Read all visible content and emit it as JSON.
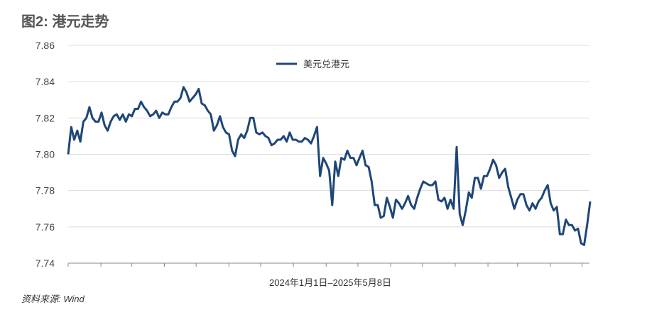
{
  "title": "图2: 港元走势",
  "source": "资料来源: Wind",
  "chart_data": {
    "type": "line",
    "title": "图2: 港元走势",
    "xlabel": "2024年1月1日–2025年5月8日",
    "ylabel": "",
    "x_range": [
      "2024-01-01",
      "2025-05-08"
    ],
    "ylim": [
      7.74,
      7.86
    ],
    "yticks": [
      "7.74",
      "7.76",
      "7.78",
      "7.80",
      "7.82",
      "7.84",
      "7.86"
    ],
    "grid": true,
    "legend": "top-center",
    "color": "#1f4678",
    "series": [
      {
        "name": "美元兑港元",
        "values": [
          7.8,
          7.815,
          7.808,
          7.813,
          7.807,
          7.818,
          7.82,
          7.826,
          7.82,
          7.818,
          7.818,
          7.823,
          7.816,
          7.813,
          7.818,
          7.821,
          7.822,
          7.819,
          7.822,
          7.818,
          7.822,
          7.821,
          7.825,
          7.825,
          7.829,
          7.826,
          7.824,
          7.821,
          7.822,
          7.824,
          7.82,
          7.823,
          7.822,
          7.822,
          7.826,
          7.829,
          7.829,
          7.831,
          7.837,
          7.834,
          7.829,
          7.831,
          7.833,
          7.836,
          7.828,
          7.827,
          7.824,
          7.822,
          7.813,
          7.816,
          7.821,
          7.815,
          7.812,
          7.811,
          7.802,
          7.799,
          7.808,
          7.811,
          7.809,
          7.813,
          7.82,
          7.82,
          7.812,
          7.811,
          7.812,
          7.81,
          7.809,
          7.805,
          7.806,
          7.808,
          7.808,
          7.81,
          7.807,
          7.812,
          7.808,
          7.808,
          7.807,
          7.807,
          7.809,
          7.808,
          7.806,
          7.81,
          7.815,
          7.788,
          7.798,
          7.795,
          7.791,
          7.772,
          7.796,
          7.788,
          7.798,
          7.797,
          7.802,
          7.798,
          7.798,
          7.794,
          7.798,
          7.802,
          7.794,
          7.793,
          7.785,
          7.772,
          7.772,
          7.765,
          7.766,
          7.776,
          7.771,
          7.765,
          7.775,
          7.773,
          7.77,
          7.773,
          7.777,
          7.772,
          7.77,
          7.776,
          7.781,
          7.785,
          7.784,
          7.783,
          7.783,
          7.785,
          7.775,
          7.774,
          7.776,
          7.77,
          7.775,
          7.77,
          7.804,
          7.767,
          7.761,
          7.769,
          7.779,
          7.776,
          7.787,
          7.787,
          7.781,
          7.788,
          7.788,
          7.792,
          7.797,
          7.794,
          7.787,
          7.79,
          7.792,
          7.782,
          7.776,
          7.77,
          7.775,
          7.778,
          7.778,
          7.772,
          7.769,
          7.773,
          7.77,
          7.774,
          7.776,
          7.78,
          7.783,
          7.773,
          7.769,
          7.771,
          7.756,
          7.756,
          7.764,
          7.761,
          7.761,
          7.758,
          7.759,
          7.751,
          7.75,
          7.761,
          7.774
        ]
      }
    ]
  }
}
